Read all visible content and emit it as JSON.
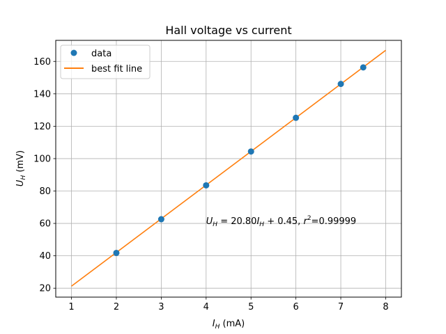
{
  "chart_data": {
    "type": "scatter",
    "title": "Hall voltage vs current",
    "xlabel": {
      "var": "I",
      "sub": "H",
      "unit": " (mA)"
    },
    "ylabel": {
      "var": "U",
      "sub": "H",
      "unit": " (mV)"
    },
    "xlim": [
      0.65,
      8.35
    ],
    "ylim": [
      14.5,
      173
    ],
    "xticks": [
      1,
      2,
      3,
      4,
      5,
      6,
      7,
      8
    ],
    "yticks": [
      20,
      40,
      60,
      80,
      100,
      120,
      140,
      160
    ],
    "grid": true,
    "legend_position": "upper left",
    "series": [
      {
        "name": "data",
        "kind": "markers",
        "color": "#1f77b4",
        "x": [
          2,
          3,
          4,
          5,
          6,
          7,
          7.5
        ],
        "y": [
          41.8,
          62.6,
          83.5,
          104.4,
          125.2,
          146.1,
          156.3
        ]
      },
      {
        "name": "best fit line",
        "kind": "line",
        "color": "#ff7f0e",
        "slope": 20.8,
        "intercept": 0.45,
        "x": [
          1,
          8
        ]
      }
    ],
    "annotation": {
      "x": 4.0,
      "y": 59.5,
      "parts": {
        "u": "U",
        "u_sub": "H",
        "eq": " = 20.80",
        "i": "I",
        "i_sub": "H",
        "rest": " + 0.45, ",
        "r": "r",
        "r_sup": "2",
        "r_val": "=0.99999"
      }
    }
  }
}
